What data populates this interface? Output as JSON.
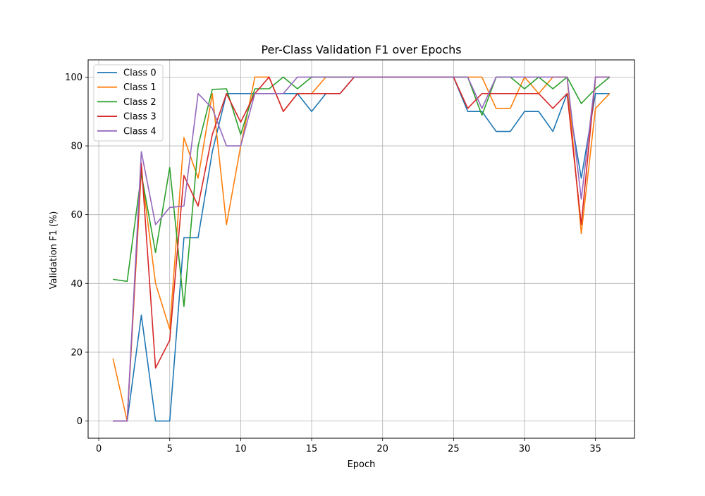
{
  "chart_data": {
    "type": "line",
    "title": "Per-Class Validation F1 over Epochs",
    "xlabel": "Epoch",
    "ylabel": "Validation F1 (%)",
    "xlim": [
      -0.75,
      37.75
    ],
    "ylim": [
      -5,
      105
    ],
    "xticks": [
      0,
      5,
      10,
      15,
      20,
      25,
      30,
      35
    ],
    "yticks": [
      0,
      20,
      40,
      60,
      80,
      100
    ],
    "grid": true,
    "legend_position": "upper-left",
    "x": [
      1,
      2,
      3,
      4,
      5,
      6,
      7,
      8,
      9,
      10,
      11,
      12,
      13,
      14,
      15,
      16,
      17,
      18,
      19,
      20,
      21,
      22,
      23,
      24,
      25,
      26,
      27,
      28,
      29,
      30,
      31,
      32,
      33,
      34,
      35,
      36
    ],
    "series": [
      {
        "name": "Class 0",
        "color": "#1f77b4",
        "values": [
          0,
          0,
          30.8,
          0,
          0,
          53.3,
          53.3,
          78.3,
          95.2,
          95.2,
          95.2,
          95.2,
          95.2,
          95.2,
          90.0,
          95.2,
          95.2,
          100,
          100,
          100,
          100,
          100,
          100,
          100,
          100,
          90.0,
          90.0,
          84.2,
          84.2,
          90.0,
          90.0,
          84.2,
          95.2,
          70.6,
          95.2,
          95.2
        ]
      },
      {
        "name": "Class 1",
        "color": "#ff7f0e",
        "values": [
          18.2,
          0,
          72.7,
          40.0,
          26.7,
          82.4,
          70.6,
          95.2,
          57.1,
          80.0,
          100,
          100,
          90.0,
          95.2,
          95.2,
          100,
          100,
          100,
          100,
          100,
          100,
          100,
          100,
          100,
          100,
          100,
          100,
          90.9,
          90.9,
          100,
          95.2,
          100,
          100,
          54.5,
          90.9,
          95.2
        ]
      },
      {
        "name": "Class 2",
        "color": "#2ca02c",
        "values": [
          41.2,
          40.6,
          71.8,
          49.0,
          73.7,
          33.3,
          80.0,
          96.4,
          96.6,
          83.3,
          96.6,
          96.6,
          100,
          96.6,
          100,
          100,
          100,
          100,
          100,
          100,
          100,
          100,
          100,
          100,
          100,
          100,
          88.9,
          100,
          100,
          96.6,
          100,
          96.6,
          100,
          92.3,
          96.6,
          100
        ]
      },
      {
        "name": "Class 3",
        "color": "#d62728",
        "values": [
          0,
          0,
          75.0,
          15.4,
          23.5,
          71.4,
          62.5,
          83.3,
          95.2,
          86.9,
          95.2,
          100,
          90.0,
          95.2,
          95.2,
          95.2,
          95.2,
          100,
          100,
          100,
          100,
          100,
          100,
          100,
          100,
          90.9,
          95.2,
          95.2,
          95.2,
          95.2,
          95.2,
          90.9,
          95.2,
          57.1,
          100,
          100
        ]
      },
      {
        "name": "Class 4",
        "color": "#9467bd",
        "values": [
          0,
          0,
          78.3,
          57.1,
          62.1,
          62.5,
          95.2,
          90.9,
          80.0,
          80.0,
          95.2,
          95.2,
          95.2,
          100,
          100,
          100,
          100,
          100,
          100,
          100,
          100,
          100,
          100,
          100,
          100,
          100,
          90.9,
          100,
          100,
          100,
          100,
          100,
          100,
          64.5,
          100,
          100
        ]
      }
    ]
  }
}
